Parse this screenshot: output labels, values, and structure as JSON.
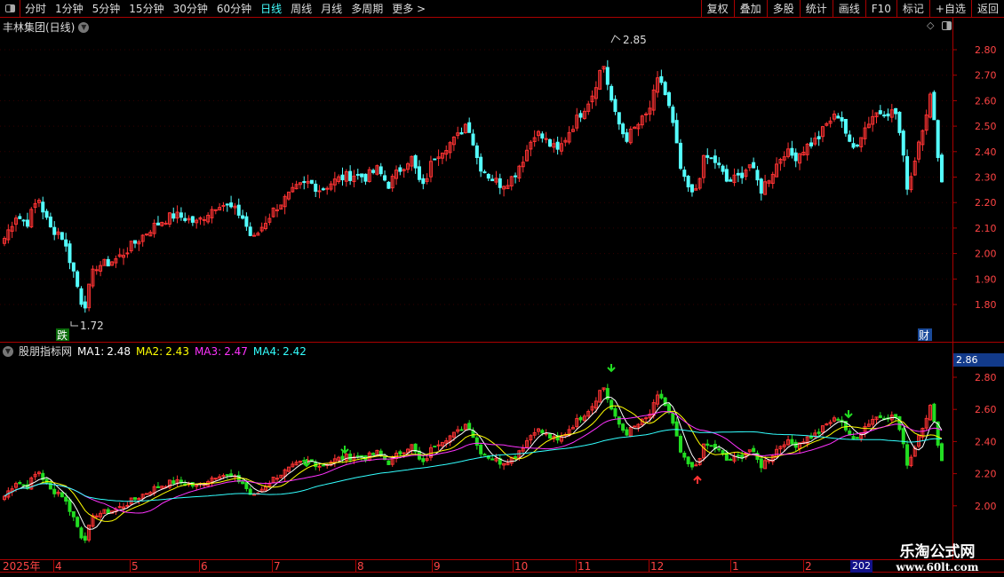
{
  "toolbar": {
    "periods": [
      "分时",
      "1分钟",
      "5分钟",
      "15分钟",
      "30分钟",
      "60分钟",
      "日线",
      "周线",
      "月线",
      "多周期",
      "更多 >"
    ],
    "active": "日线",
    "buttons": [
      "复权",
      "叠加",
      "多股",
      "统计",
      "画线",
      "F10",
      "标记",
      "+自选",
      "返回"
    ]
  },
  "title": "丰林集团(日线)",
  "indicator": {
    "name": "股朋指标网",
    "ma": [
      {
        "label": "MA1:",
        "value": "2.48",
        "color": "#ffffff"
      },
      {
        "label": "MA2:",
        "value": "2.43",
        "color": "#ffff00"
      },
      {
        "label": "MA3:",
        "value": "2.47",
        "color": "#ff33ff"
      },
      {
        "label": "MA4:",
        "value": "2.42",
        "color": "#33ffff"
      }
    ]
  },
  "price_axis": [
    "2.80",
    "2.70",
    "2.60",
    "2.50",
    "2.40",
    "2.30",
    "2.20",
    "2.10",
    "2.00",
    "1.90",
    "1.80"
  ],
  "indicator_axis": [
    "2.80",
    "2.60",
    "2.40",
    "2.20",
    "2.00"
  ],
  "current_price": "2.86",
  "annotations": {
    "high": "2.85",
    "low": "1.72",
    "fall_tag": "跌",
    "finance_tag": "财"
  },
  "date_axis": {
    "year": "2025年",
    "months": [
      "4",
      "5",
      "6",
      "7",
      "8",
      "9",
      "10",
      "11",
      "12",
      "1",
      "2"
    ],
    "highlight": "202"
  },
  "watermark": {
    "name": "乐淘公式网",
    "url": "www.60lt.com"
  },
  "colors": {
    "up": "#ff3333",
    "down": "#54ffff",
    "down_lower": "#22dd22",
    "axis": "#aa0000"
  },
  "chart_data": {
    "type": "candlestick",
    "ylim": [
      1.72,
      2.85
    ],
    "close": [
      2.06,
      2.15,
      2.12,
      2.22,
      2.1,
      2.08,
      1.95,
      1.78,
      1.95,
      1.96,
      1.98,
      2.02,
      2.06,
      2.1,
      2.13,
      2.15,
      2.14,
      2.12,
      2.16,
      2.2,
      2.18,
      2.15,
      2.05,
      2.12,
      2.18,
      2.22,
      2.26,
      2.28,
      2.25,
      2.28,
      2.3,
      2.31,
      2.3,
      2.33,
      2.27,
      2.33,
      2.38,
      2.25,
      2.38,
      2.42,
      2.45,
      2.52,
      2.35,
      2.3,
      2.27,
      2.3,
      2.38,
      2.48,
      2.44,
      2.4,
      2.48,
      2.55,
      2.62,
      2.75,
      2.55,
      2.45,
      2.5,
      2.55,
      2.7,
      2.55,
      2.3,
      2.22,
      2.38,
      2.36,
      2.28,
      2.3,
      2.35,
      2.25,
      2.32,
      2.4,
      2.38,
      2.42,
      2.45,
      2.52,
      2.55,
      2.4,
      2.48,
      2.55,
      2.56,
      2.55,
      2.25,
      2.45,
      2.62,
      2.28
    ]
  }
}
